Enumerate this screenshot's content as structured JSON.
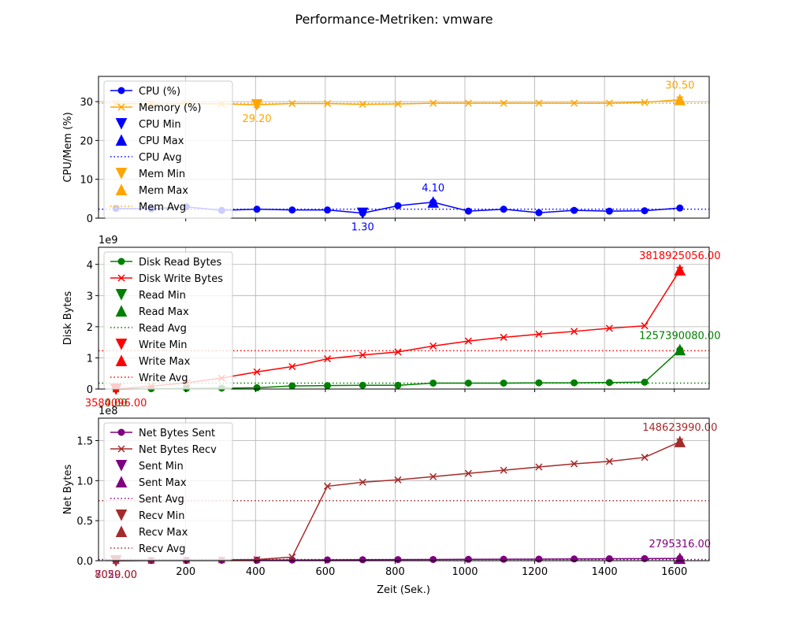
{
  "title": "Performance-Metriken: vmware",
  "xlabel": "Zeit (Sek.)",
  "xlim": [
    -50,
    1700
  ],
  "xticks": [
    200,
    400,
    600,
    800,
    1000,
    1200,
    1400,
    1600
  ],
  "colors": {
    "cpu": "#0000ff",
    "mem": "#ffa500",
    "read": "#008000",
    "write": "#ff0000",
    "sent": "#800080",
    "recv": "#a52a2a",
    "grid": "#b0b0b0"
  },
  "chart_data": [
    {
      "type": "line",
      "ylabel": "CPU/Mem (%)",
      "ylim": [
        0,
        36.5
      ],
      "yticks": [
        0,
        10,
        20,
        30
      ],
      "exponent": "",
      "grid": true,
      "legend_position": "upper-left",
      "x": [
        0,
        101,
        202,
        303,
        404,
        505,
        606,
        707,
        808,
        909,
        1010,
        1111,
        1212,
        1313,
        1414,
        1515,
        1616
      ],
      "series": [
        {
          "name": "CPU (%)",
          "key": "cpu",
          "marker": "o",
          "values": [
            2.5,
            2.4,
            2.9,
            2.0,
            2.3,
            2.1,
            2.1,
            1.3,
            3.2,
            4.1,
            1.8,
            2.3,
            1.4,
            2.0,
            1.8,
            1.9,
            2.6
          ]
        },
        {
          "name": "Memory (%)",
          "key": "mem",
          "marker": "x",
          "values": [
            29.5,
            29.4,
            29.5,
            29.4,
            29.2,
            29.5,
            29.5,
            29.3,
            29.4,
            29.6,
            29.6,
            29.6,
            29.6,
            29.6,
            29.6,
            29.8,
            30.5
          ]
        }
      ],
      "extremes": [
        {
          "name": "CPU Min",
          "key": "cpu",
          "kind": "min",
          "x": 707,
          "y": 1.3,
          "text": "1.30"
        },
        {
          "name": "CPU Max",
          "key": "cpu",
          "kind": "max",
          "x": 909,
          "y": 4.1,
          "text": "4.10"
        },
        {
          "name": "Mem Min",
          "key": "mem",
          "kind": "min",
          "x": 404,
          "y": 29.2,
          "text": "29.20"
        },
        {
          "name": "Mem Max",
          "key": "mem",
          "kind": "max",
          "x": 1616,
          "y": 30.5,
          "text": "30.50"
        }
      ],
      "averages": [
        {
          "name": "CPU Avg",
          "key": "cpu",
          "y": 2.3
        },
        {
          "name": "Mem Avg",
          "key": "mem",
          "y": 29.55
        }
      ],
      "legend": [
        {
          "name": "CPU (%)",
          "key": "cpu",
          "type": "line",
          "marker": "o"
        },
        {
          "name": "Memory (%)",
          "key": "mem",
          "type": "line",
          "marker": "x"
        },
        {
          "name": "CPU Min",
          "key": "cpu",
          "type": "marker",
          "marker": "v"
        },
        {
          "name": "CPU Max",
          "key": "cpu",
          "type": "marker",
          "marker": "^"
        },
        {
          "name": "CPU Avg",
          "key": "cpu",
          "type": "dotted"
        },
        {
          "name": "Mem Min",
          "key": "mem",
          "type": "marker",
          "marker": "v"
        },
        {
          "name": "Mem Max",
          "key": "mem",
          "type": "marker",
          "marker": "^"
        },
        {
          "name": "Mem Avg",
          "key": "mem",
          "type": "dotted"
        }
      ]
    },
    {
      "type": "line",
      "ylabel": "Disk Bytes",
      "ylim": [
        0,
        4.55
      ],
      "yticks": [
        0,
        1,
        2,
        3,
        4
      ],
      "exponent": "1e9",
      "grid": true,
      "legend_position": "upper-left",
      "x": [
        0,
        101,
        202,
        303,
        404,
        505,
        606,
        707,
        808,
        909,
        1010,
        1111,
        1212,
        1313,
        1414,
        1515,
        1616
      ],
      "series": [
        {
          "name": "Disk Read Bytes",
          "key": "read",
          "marker": "o",
          "values": [
            0.0,
            0.01,
            0.02,
            0.03,
            0.04,
            0.1,
            0.11,
            0.12,
            0.12,
            0.19,
            0.19,
            0.19,
            0.2,
            0.2,
            0.21,
            0.22,
            1.257
          ]
        },
        {
          "name": "Disk Write Bytes",
          "key": "write",
          "marker": "x",
          "values": [
            0.0,
            0.09,
            0.2,
            0.35,
            0.55,
            0.72,
            0.97,
            1.09,
            1.19,
            1.38,
            1.54,
            1.66,
            1.76,
            1.85,
            1.95,
            2.03,
            3.819
          ]
        }
      ],
      "extremes": [
        {
          "name": "Read Min",
          "key": "read",
          "kind": "min",
          "x": 0,
          "y": 0.0,
          "text": "0.00"
        },
        {
          "name": "Read Max",
          "key": "read",
          "kind": "max",
          "x": 1616,
          "y": 1.257,
          "text": "1257390080.00"
        },
        {
          "name": "Write Min",
          "key": "write",
          "kind": "min",
          "x": 0,
          "y": 0.0,
          "text": "3584096.00"
        },
        {
          "name": "Write Max",
          "key": "write",
          "kind": "max",
          "x": 1616,
          "y": 3.819,
          "text": "3818925056.00"
        }
      ],
      "averages": [
        {
          "name": "Read Avg",
          "key": "read",
          "y": 0.19
        },
        {
          "name": "Write Avg",
          "key": "write",
          "y": 1.23
        }
      ],
      "legend": [
        {
          "name": "Disk Read Bytes",
          "key": "read",
          "type": "line",
          "marker": "o"
        },
        {
          "name": "Disk Write Bytes",
          "key": "write",
          "type": "line",
          "marker": "x"
        },
        {
          "name": "Read Min",
          "key": "read",
          "type": "marker",
          "marker": "v"
        },
        {
          "name": "Read Max",
          "key": "read",
          "type": "marker",
          "marker": "^"
        },
        {
          "name": "Read Avg",
          "key": "read",
          "type": "dotted"
        },
        {
          "name": "Write Min",
          "key": "write",
          "type": "marker",
          "marker": "v"
        },
        {
          "name": "Write Max",
          "key": "write",
          "type": "marker",
          "marker": "^"
        },
        {
          "name": "Write Avg",
          "key": "write",
          "type": "dotted"
        }
      ]
    },
    {
      "type": "line",
      "ylabel": "Net Bytes",
      "ylim": [
        0,
        1.78
      ],
      "yticks": [
        0.0,
        0.5,
        1.0,
        1.5
      ],
      "exponent": "1e8",
      "grid": true,
      "legend_position": "upper-left",
      "x": [
        0,
        101,
        202,
        303,
        404,
        505,
        606,
        707,
        808,
        909,
        1010,
        1111,
        1212,
        1313,
        1414,
        1515,
        1616
      ],
      "series": [
        {
          "name": "Net Bytes Sent",
          "key": "sent",
          "marker": "o",
          "values": [
            0.0,
            0.002,
            0.004,
            0.005,
            0.006,
            0.008,
            0.01,
            0.012,
            0.014,
            0.015,
            0.017,
            0.018,
            0.02,
            0.022,
            0.024,
            0.026,
            0.028
          ]
        },
        {
          "name": "Net Bytes Recv",
          "key": "recv",
          "marker": "x",
          "values": [
            0.0,
            0.003,
            0.006,
            0.01,
            0.015,
            0.045,
            0.93,
            0.98,
            1.01,
            1.05,
            1.09,
            1.13,
            1.17,
            1.21,
            1.24,
            1.29,
            1.486
          ]
        }
      ],
      "extremes": [
        {
          "name": "Sent Min",
          "key": "sent",
          "kind": "min",
          "x": 0,
          "y": 0.0,
          "text": "7050.00"
        },
        {
          "name": "Sent Max",
          "key": "sent",
          "kind": "max",
          "x": 1616,
          "y": 0.028,
          "text": "2795316.00"
        },
        {
          "name": "Recv Min",
          "key": "recv",
          "kind": "min",
          "x": 0,
          "y": 0.0,
          "text": "8029.00"
        },
        {
          "name": "Recv Max",
          "key": "recv",
          "kind": "max",
          "x": 1616,
          "y": 1.486,
          "text": "148623990.00"
        }
      ],
      "averages": [
        {
          "name": "Sent Avg",
          "key": "sent",
          "y": 0.015
        },
        {
          "name": "Recv Avg",
          "key": "recv",
          "y": 0.75
        }
      ],
      "legend": [
        {
          "name": "Net Bytes Sent",
          "key": "sent",
          "type": "line",
          "marker": "o"
        },
        {
          "name": "Net Bytes Recv",
          "key": "recv",
          "type": "line",
          "marker": "x"
        },
        {
          "name": "Sent Min",
          "key": "sent",
          "type": "marker",
          "marker": "v"
        },
        {
          "name": "Sent Max",
          "key": "sent",
          "type": "marker",
          "marker": "^"
        },
        {
          "name": "Sent Avg",
          "key": "sent",
          "type": "dotted"
        },
        {
          "name": "Recv Min",
          "key": "recv",
          "type": "marker",
          "marker": "v"
        },
        {
          "name": "Recv Max",
          "key": "recv",
          "type": "marker",
          "marker": "^"
        },
        {
          "name": "Recv Avg",
          "key": "recv",
          "type": "dotted"
        }
      ]
    }
  ]
}
